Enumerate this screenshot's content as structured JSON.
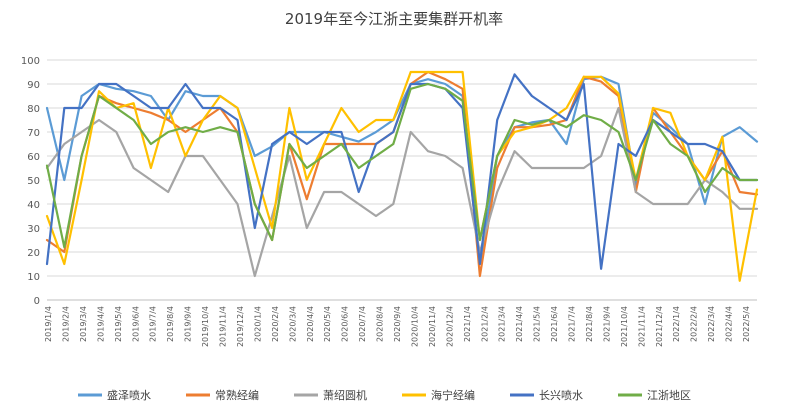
{
  "chart_data": {
    "type": "line",
    "title": "2019年至今江浙主要集群开机率",
    "ylim": [
      0,
      100
    ],
    "yticks": [
      0,
      10,
      20,
      30,
      40,
      50,
      60,
      70,
      80,
      90,
      100
    ],
    "grid": true,
    "legend_position": "bottom",
    "x_tick_labels": [
      "2019/1/4",
      "2019/2/4",
      "2019/3/4",
      "2019/4/4",
      "2019/5/4",
      "2019/6/4",
      "2019/7/4",
      "2019/8/4",
      "2019/9/4",
      "2019/10/4",
      "2019/11/4",
      "2019/12/4",
      "2020/1/4",
      "2020/2/4",
      "2020/3/4",
      "2020/4/4",
      "2020/5/4",
      "2020/6/4",
      "2020/7/4",
      "2020/8/4",
      "2020/9/4",
      "2020/10/4",
      "2020/11/4",
      "2020/12/4",
      "2021/1/4",
      "2021/2/4",
      "2021/3/4",
      "2021/4/4",
      "2021/5/4",
      "2021/6/4",
      "2021/7/4",
      "2021/8/4",
      "2021/9/4",
      "2021/10/4",
      "2021/11/4",
      "2021/12/4",
      "2022/1/4",
      "2022/2/4",
      "2022/3/4",
      "2022/4/4",
      "2022/5/4"
    ],
    "x": [
      "2019/1",
      "2019/2",
      "2019/3",
      "2019/4",
      "2019/5",
      "2019/6",
      "2019/7",
      "2019/8",
      "2019/9",
      "2019/10",
      "2019/11",
      "2019/12",
      "2020/1",
      "2020/2",
      "2020/3",
      "2020/4",
      "2020/5",
      "2020/6",
      "2020/7",
      "2020/8",
      "2020/9",
      "2020/10",
      "2020/11",
      "2020/12",
      "2021/1",
      "2021/2",
      "2021/3",
      "2021/4",
      "2021/5",
      "2021/6",
      "2021/7",
      "2021/8",
      "2021/9",
      "2021/10",
      "2021/11",
      "2021/12",
      "2022/1",
      "2022/2",
      "2022/3",
      "2022/4",
      "2022/5",
      "2022/6"
    ],
    "series": [
      {
        "name": "盛泽喷水",
        "color": "#5b9bd5",
        "values": [
          80,
          50,
          85,
          90,
          88,
          87,
          85,
          75,
          87,
          85,
          85,
          80,
          60,
          64,
          70,
          70,
          70,
          68,
          66,
          70,
          75,
          90,
          92,
          90,
          85,
          15,
          60,
          72,
          74,
          75,
          65,
          92,
          93,
          90,
          48,
          78,
          72,
          65,
          40,
          68,
          72,
          66
        ]
      },
      {
        "name": "常熟经编",
        "color": "#ed7d31",
        "values": [
          25,
          20,
          60,
          85,
          82,
          80,
          78,
          75,
          70,
          75,
          80,
          70,
          40,
          25,
          65,
          42,
          65,
          65,
          65,
          65,
          70,
          90,
          95,
          92,
          88,
          10,
          55,
          72,
          72,
          73,
          75,
          93,
          91,
          85,
          45,
          80,
          70,
          60,
          50,
          62,
          45,
          44
        ]
      },
      {
        "name": "萧绍圆机",
        "color": "#a5a5a5",
        "values": [
          55,
          65,
          70,
          75,
          70,
          55,
          50,
          45,
          60,
          60,
          50,
          40,
          10,
          35,
          60,
          30,
          45,
          45,
          40,
          35,
          40,
          70,
          62,
          60,
          55,
          20,
          45,
          62,
          55,
          55,
          55,
          55,
          60,
          80,
          45,
          40,
          40,
          40,
          50,
          45,
          38,
          38
        ]
      },
      {
        "name": "海宁经编",
        "color": "#ffc000",
        "values": [
          35,
          15,
          50,
          87,
          80,
          82,
          55,
          80,
          60,
          75,
          85,
          80,
          55,
          30,
          80,
          50,
          65,
          80,
          70,
          75,
          75,
          95,
          95,
          95,
          95,
          25,
          60,
          70,
          72,
          75,
          80,
          93,
          93,
          86,
          50,
          80,
          78,
          60,
          50,
          68,
          8,
          46
        ]
      },
      {
        "name": "长兴喷水",
        "color": "#4472c4",
        "values": [
          15,
          80,
          80,
          90,
          90,
          85,
          80,
          80,
          90,
          80,
          80,
          75,
          30,
          65,
          70,
          65,
          70,
          70,
          45,
          65,
          70,
          90,
          90,
          88,
          80,
          15,
          75,
          94,
          85,
          80,
          75,
          90,
          13,
          65,
          60,
          75,
          70,
          65,
          65,
          62,
          50,
          50
        ]
      },
      {
        "name": "江浙地区",
        "color": "#70ad47",
        "values": [
          56,
          22,
          60,
          85,
          80,
          75,
          65,
          70,
          72,
          70,
          72,
          70,
          40,
          25,
          65,
          55,
          60,
          65,
          55,
          60,
          65,
          88,
          90,
          88,
          83,
          25,
          60,
          75,
          73,
          75,
          72,
          77,
          75,
          70,
          50,
          75,
          65,
          60,
          45,
          55,
          50,
          50
        ]
      }
    ]
  }
}
